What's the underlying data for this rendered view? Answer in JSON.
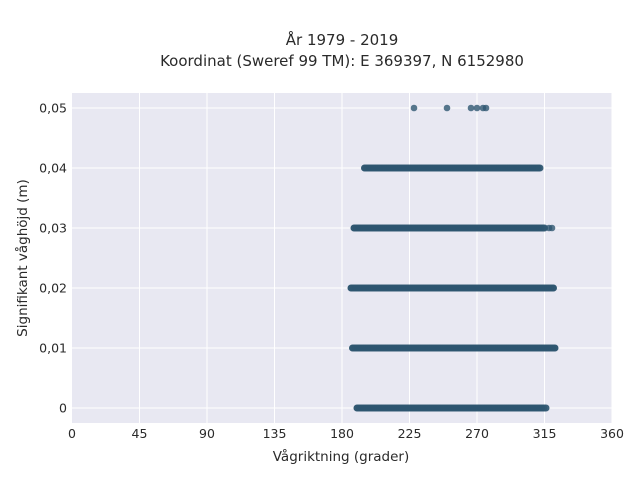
{
  "chart_data": {
    "type": "scatter",
    "title": "År 1979 - 2019",
    "subtitle": "Koordinat (Sweref 99 TM): E 369397, N 6152980",
    "xlabel": "Vågriktning (grader)",
    "ylabel": "Signifikant våghöjd (m)",
    "xlim": [
      0,
      360
    ],
    "ylim": [
      -0.0025,
      0.0525
    ],
    "xticks": [
      0,
      45,
      90,
      135,
      180,
      225,
      270,
      315,
      360
    ],
    "xtick_labels": [
      "0",
      "45",
      "90",
      "135",
      "180",
      "225",
      "270",
      "315",
      "360"
    ],
    "yticks": [
      0,
      0.01,
      0.02,
      0.03,
      0.04,
      0.05
    ],
    "ytick_labels": [
      "0",
      "0,01",
      "0,02",
      "0,03",
      "0,04",
      "0,05"
    ],
    "grid": true,
    "background": "#e8e8f2",
    "marker_color": "#2e5670",
    "bands": [
      {
        "y": 0.0,
        "x_min": 190,
        "x_max": 316
      },
      {
        "y": 0.01,
        "x_min": 187,
        "x_max": 322
      },
      {
        "y": 0.02,
        "x_min": 186,
        "x_max": 321
      },
      {
        "y": 0.03,
        "x_min": 188,
        "x_max": 315
      },
      {
        "y": 0.04,
        "x_min": 195,
        "x_max": 312
      }
    ],
    "sparse_points": [
      {
        "x": 311,
        "y": 0.04
      },
      {
        "x": 318,
        "y": 0.03
      },
      {
        "x": 320,
        "y": 0.03
      },
      {
        "x": 228,
        "y": 0.05
      },
      {
        "x": 250,
        "y": 0.05
      },
      {
        "x": 266,
        "y": 0.05
      },
      {
        "x": 270,
        "y": 0.05
      },
      {
        "x": 274,
        "y": 0.05
      },
      {
        "x": 276,
        "y": 0.05
      }
    ]
  }
}
